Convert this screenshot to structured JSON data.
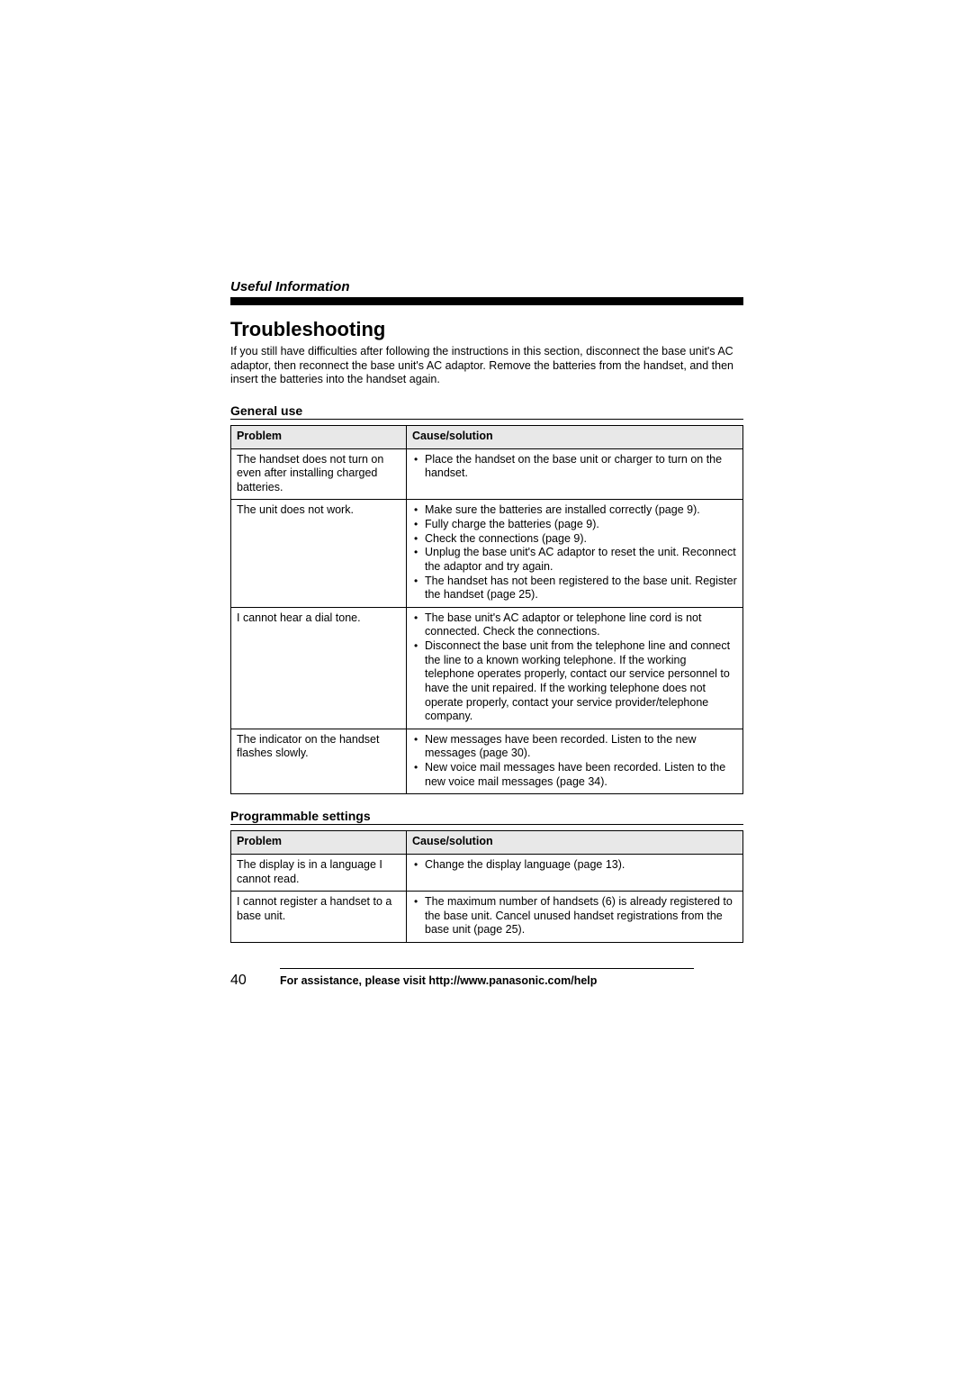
{
  "header": {
    "section_label": "Useful Information"
  },
  "title": "Troubleshooting",
  "intro": "If you still have difficulties after following the instructions in this section, disconnect the base unit's AC adaptor, then reconnect the base unit's AC adaptor. Remove the batteries from the handset, and then insert the batteries into the handset again.",
  "tables": {
    "headers": {
      "problem": "Problem",
      "solution": "Cause/solution"
    },
    "general": {
      "heading": "General use",
      "rows": [
        {
          "problem": "The handset does not turn on even after installing charged batteries.",
          "solutions": [
            "Place the handset on the base unit or charger to turn on the handset."
          ]
        },
        {
          "problem": "The unit does not work.",
          "solutions": [
            "Make sure the batteries are installed correctly (page 9).",
            "Fully charge the batteries (page 9).",
            "Check the connections (page 9).",
            "Unplug the base unit's AC adaptor to reset the unit. Reconnect the adaptor and try again.",
            "The handset has not been registered to the base unit. Register the handset (page 25)."
          ]
        },
        {
          "problem": "I cannot hear a dial tone.",
          "solutions": [
            "The base unit's AC adaptor or telephone line cord is not connected. Check the connections.",
            "Disconnect the base unit from the telephone line and connect the line to a known working telephone. If the working telephone operates properly, contact our service personnel to have the unit repaired. If the working telephone does not operate properly, contact your service provider/telephone company."
          ]
        },
        {
          "problem": "The indicator on the handset flashes slowly.",
          "solutions": [
            "New messages have been recorded. Listen to the new messages (page 30).",
            "New voice mail messages have been recorded. Listen to the new voice mail messages (page 34)."
          ]
        }
      ]
    },
    "programmable": {
      "heading": "Programmable settings",
      "rows": [
        {
          "problem": "The display is in a language I cannot read.",
          "solutions": [
            "Change the display language (page 13)."
          ]
        },
        {
          "problem": "I cannot register a handset to a base unit.",
          "solutions": [
            "The maximum number of handsets (6) is already registered to the base unit. Cancel unused handset registrations from the base unit (page 25)."
          ]
        }
      ]
    }
  },
  "footer": {
    "page_number": "40",
    "assist_text": "For assistance, please visit http://www.panasonic.com/help"
  },
  "colors": {
    "text": "#000000",
    "background": "#ffffff",
    "table_header_bg": "#e8e8e8"
  }
}
